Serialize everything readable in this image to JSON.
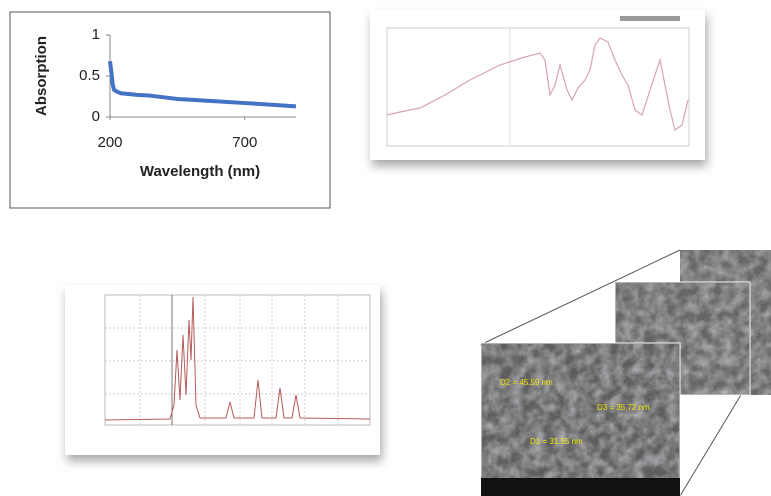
{
  "chart_data": {
    "type": "line",
    "xlabel": "Wavelength (nm)",
    "ylabel": "Absorption",
    "x": [
      200,
      205,
      210,
      215,
      225,
      240,
      270,
      300,
      350,
      400,
      450,
      500,
      600,
      700,
      800,
      890
    ],
    "values": [
      0.68,
      0.55,
      0.4,
      0.33,
      0.31,
      0.29,
      0.28,
      0.27,
      0.26,
      0.24,
      0.22,
      0.21,
      0.19,
      0.17,
      0.15,
      0.13
    ],
    "color": "#4472c4",
    "xlim": [
      200,
      890
    ],
    "ylim": [
      0,
      1
    ],
    "xticks": [
      200,
      700
    ],
    "yticks": [
      0,
      0.5,
      1
    ]
  },
  "sem": {
    "labels": [
      "D2 = 45.59 nm",
      "D3 = 35.72 nm",
      "D1 = 31.55 nm"
    ]
  }
}
